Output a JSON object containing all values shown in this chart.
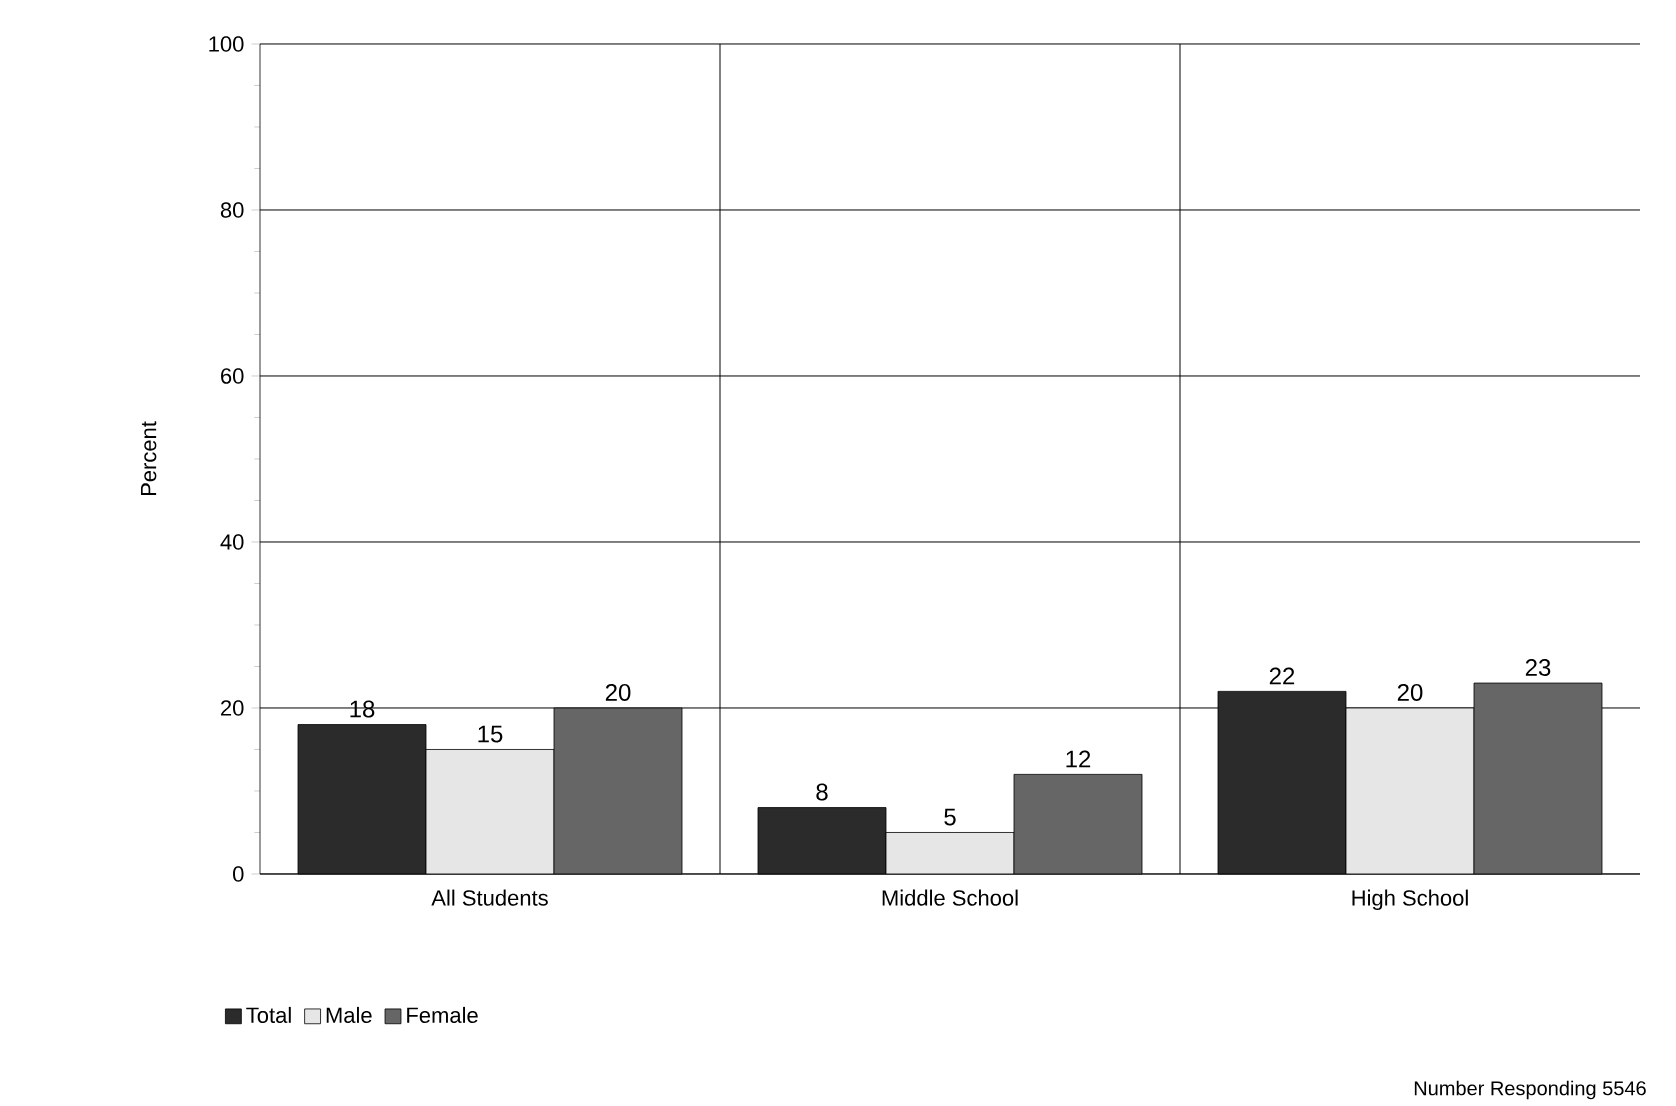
{
  "chart_data": {
    "type": "bar",
    "ylabel": "Percent",
    "categories": [
      "All Students",
      "Middle School",
      "High School"
    ],
    "series": [
      {
        "name": "Total",
        "color": "#2b2b2b",
        "values": [
          18,
          8,
          22
        ]
      },
      {
        "name": "Male",
        "color": "#e6e6e6",
        "values": [
          15,
          5,
          20
        ]
      },
      {
        "name": "Female",
        "color": "#666666",
        "values": [
          20,
          12,
          23
        ]
      }
    ],
    "ylim": [
      0,
      100
    ],
    "yticks": [
      0,
      20,
      40,
      60,
      80,
      100
    ],
    "grid": true,
    "data_labels": true,
    "legend": "bottom left",
    "annotations": [
      "Number Responding 5546"
    ]
  }
}
